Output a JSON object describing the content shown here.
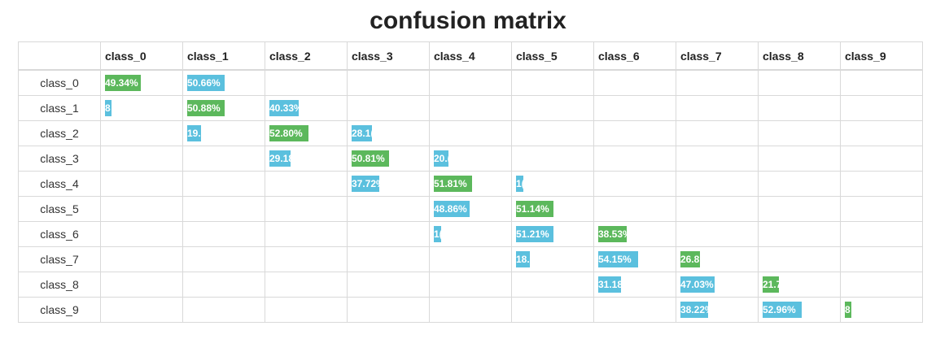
{
  "title": "confusion matrix",
  "chart_data": {
    "type": "heatmap",
    "title": "confusion matrix",
    "columns": [
      "class_0",
      "class_1",
      "class_2",
      "class_3",
      "class_4",
      "class_5",
      "class_6",
      "class_7",
      "class_8",
      "class_9"
    ],
    "rows": [
      "class_0",
      "class_1",
      "class_2",
      "class_3",
      "class_4",
      "class_5",
      "class_6",
      "class_7",
      "class_8",
      "class_9"
    ],
    "cells": [
      {
        "row": 0,
        "col": 0,
        "value": 49.34,
        "label": "49.34%",
        "correct": true
      },
      {
        "row": 0,
        "col": 1,
        "value": 50.66,
        "label": "50.66%",
        "correct": false
      },
      {
        "row": 1,
        "col": 0,
        "value": 8.79,
        "label": "8",
        "correct": false
      },
      {
        "row": 1,
        "col": 1,
        "value": 50.88,
        "label": "50.88%",
        "correct": true
      },
      {
        "row": 1,
        "col": 2,
        "value": 40.33,
        "label": "40.33%",
        "correct": false
      },
      {
        "row": 2,
        "col": 1,
        "value": 19.1,
        "label": "19.",
        "correct": false
      },
      {
        "row": 2,
        "col": 2,
        "value": 52.8,
        "label": "52.80%",
        "correct": true
      },
      {
        "row": 2,
        "col": 3,
        "value": 28.1,
        "label": "28.1(",
        "correct": false
      },
      {
        "row": 3,
        "col": 2,
        "value": 29.18,
        "label": "29.18",
        "correct": false
      },
      {
        "row": 3,
        "col": 3,
        "value": 50.81,
        "label": "50.81%",
        "correct": true
      },
      {
        "row": 3,
        "col": 4,
        "value": 20.0,
        "label": "20.(",
        "correct": false
      },
      {
        "row": 4,
        "col": 3,
        "value": 37.72,
        "label": "37.72%",
        "correct": false
      },
      {
        "row": 4,
        "col": 4,
        "value": 51.81,
        "label": "51.81%",
        "correct": true
      },
      {
        "row": 4,
        "col": 5,
        "value": 10.5,
        "label": "1(",
        "correct": false
      },
      {
        "row": 5,
        "col": 4,
        "value": 48.86,
        "label": "48.86%",
        "correct": false
      },
      {
        "row": 5,
        "col": 5,
        "value": 51.14,
        "label": "51.14%",
        "correct": true
      },
      {
        "row": 6,
        "col": 4,
        "value": 10.3,
        "label": "1(",
        "correct": false
      },
      {
        "row": 6,
        "col": 5,
        "value": 51.21,
        "label": "51.21%",
        "correct": false
      },
      {
        "row": 6,
        "col": 6,
        "value": 38.53,
        "label": "38.53%",
        "correct": true
      },
      {
        "row": 7,
        "col": 5,
        "value": 18.9,
        "label": "18.",
        "correct": false
      },
      {
        "row": 7,
        "col": 6,
        "value": 54.15,
        "label": "54.15%",
        "correct": false
      },
      {
        "row": 7,
        "col": 7,
        "value": 26.8,
        "label": "26.8",
        "correct": true
      },
      {
        "row": 8,
        "col": 6,
        "value": 31.18,
        "label": "31.18",
        "correct": false
      },
      {
        "row": 8,
        "col": 7,
        "value": 47.03,
        "label": "47.03%",
        "correct": false
      },
      {
        "row": 8,
        "col": 8,
        "value": 21.7,
        "label": "21.7",
        "correct": true
      },
      {
        "row": 9,
        "col": 7,
        "value": 38.22,
        "label": "38.22%",
        "correct": false
      },
      {
        "row": 9,
        "col": 8,
        "value": 52.96,
        "label": "52.96%",
        "correct": false
      },
      {
        "row": 9,
        "col": 9,
        "value": 8.82,
        "label": "8",
        "correct": true
      }
    ],
    "colors": {
      "correct": "#5cb85c",
      "incorrect": "#5bc0de"
    }
  }
}
